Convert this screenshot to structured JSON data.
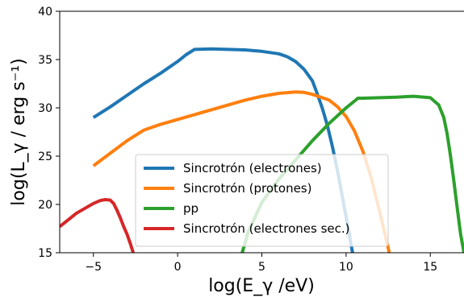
{
  "chart_data": {
    "type": "line",
    "xlabel": "log(E_γ /eV)",
    "ylabel": "log(L_γ  / erg s⁻¹)",
    "xlim": [
      -7,
      17
    ],
    "ylim": [
      15,
      40
    ],
    "xticks": [
      -5,
      0,
      5,
      10,
      15
    ],
    "yticks": [
      15,
      20,
      25,
      30,
      35,
      40
    ],
    "xtick_labels": [
      "−5",
      "0",
      "5",
      "10",
      "15"
    ],
    "ytick_labels": [
      "15",
      "20",
      "25",
      "30",
      "35",
      "40"
    ],
    "legend_position": "lower center",
    "series": [
      {
        "name": "Sincrotrón (electrones)",
        "color": "#1f77b4",
        "x": [
          -5,
          -4,
          -3,
          -2,
          -1,
          0,
          0.5,
          1,
          2,
          3,
          4,
          5,
          6,
          6.5,
          7,
          7.5,
          8,
          8.3,
          8.6,
          8.9,
          9.2,
          9.5,
          9.8,
          10.1,
          10.3,
          10.6
        ],
        "y": [
          29.0,
          30.1,
          31.3,
          32.5,
          33.6,
          34.8,
          35.5,
          36.05,
          36.1,
          36.05,
          36.0,
          35.85,
          35.6,
          35.3,
          34.8,
          34.0,
          32.8,
          31.4,
          29.9,
          28.1,
          25.9,
          23.4,
          20.6,
          17.8,
          15.8,
          13.0
        ]
      },
      {
        "name": "Sincrotrón (protones)",
        "color": "#ff7f0e",
        "x": [
          -5,
          -4,
          -3,
          -2,
          -1,
          0,
          1,
          2,
          3,
          4,
          5,
          6,
          7,
          7.5,
          8,
          9,
          9.5,
          10,
          10.5,
          11,
          11.5,
          12,
          12.5,
          12.8
        ],
        "y": [
          24.0,
          25.3,
          26.6,
          27.7,
          28.3,
          28.8,
          29.3,
          29.8,
          30.3,
          30.8,
          31.2,
          31.5,
          31.65,
          31.6,
          31.4,
          30.8,
          30.1,
          29.1,
          27.6,
          25.5,
          22.7,
          19.2,
          15.5,
          13.0
        ]
      },
      {
        "name": "pp",
        "color": "#2ca02c",
        "x": [
          3.5,
          4.2,
          5,
          6,
          7,
          8,
          9,
          10,
          10.5,
          10.7,
          11,
          12,
          13,
          14,
          15,
          15.5,
          15.8,
          16.0,
          16.2,
          16.4,
          16.6,
          16.8,
          17.0
        ],
        "y": [
          13.0,
          17.2,
          20.2,
          22.6,
          24.6,
          26.6,
          28.4,
          30.0,
          30.7,
          31.0,
          31.0,
          31.05,
          31.1,
          31.2,
          31.05,
          30.3,
          29.0,
          27.3,
          25.0,
          22.4,
          19.6,
          16.9,
          15.0
        ]
      },
      {
        "name": "Sincrotrón (electrones sec.)",
        "color": "#d62728",
        "x": [
          -7,
          -6.5,
          -6,
          -5.5,
          -5,
          -4.6,
          -4.3,
          -4.0,
          -3.8,
          -3.6,
          -3.4,
          -3.2,
          -3.0,
          -2.8,
          -2.6,
          -2.4
        ],
        "y": [
          17.7,
          18.4,
          19.1,
          19.6,
          20.1,
          20.4,
          20.5,
          20.45,
          20.1,
          19.4,
          18.6,
          17.7,
          16.9,
          15.9,
          14.8,
          13.5
        ]
      }
    ]
  }
}
